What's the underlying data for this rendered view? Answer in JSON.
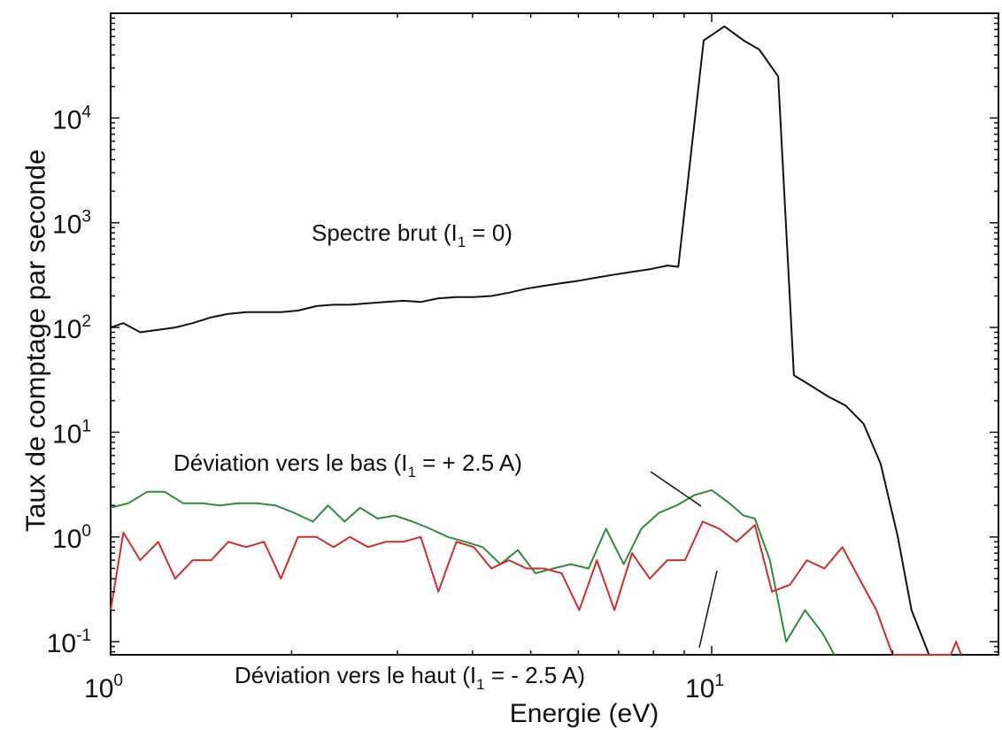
{
  "chart_data": {
    "type": "line",
    "xlabel": "Energie (eV)",
    "ylabel": "Taux de comptage par seconde",
    "x_scale": "log",
    "y_scale": "log",
    "xlim": [
      1,
      30
    ],
    "ylim": [
      0.075,
      100000
    ],
    "x_ticks": [
      {
        "base": "10",
        "exp": "0",
        "value": 1
      },
      {
        "base": "10",
        "exp": "1",
        "value": 10
      }
    ],
    "y_ticks": [
      {
        "base": "10",
        "exp": "-1",
        "value": 0.1
      },
      {
        "base": "10",
        "exp": "0",
        "value": 1
      },
      {
        "base": "10",
        "exp": "1",
        "value": 10
      },
      {
        "base": "10",
        "exp": "2",
        "value": 100
      },
      {
        "base": "10",
        "exp": "3",
        "value": 1000
      },
      {
        "base": "10",
        "exp": "4",
        "value": 10000
      }
    ],
    "grid": false,
    "legend": "none",
    "series": [
      {
        "color": "#111111",
        "x": [
          1.0,
          1.05,
          1.12,
          1.2,
          1.28,
          1.37,
          1.47,
          1.57,
          1.68,
          1.8,
          1.92,
          2.05,
          2.2,
          2.35,
          2.5,
          2.68,
          2.87,
          3.07,
          3.28,
          3.51,
          3.76,
          4.02,
          4.3,
          4.6,
          4.92,
          5.26,
          5.63,
          6.02,
          6.44,
          6.89,
          7.37,
          7.89,
          8.44,
          8.8,
          9.7,
          10.5,
          11.3,
          12.0,
          12.9,
          13.7,
          14.6,
          15.6,
          16.7,
          17.9,
          19.1,
          20.4,
          21.5,
          23.0
        ],
        "y": [
          100,
          110,
          90,
          95,
          100,
          110,
          125,
          135,
          140,
          140,
          140,
          145,
          160,
          165,
          165,
          170,
          175,
          180,
          175,
          190,
          195,
          195,
          200,
          215,
          235,
          250,
          265,
          280,
          300,
          320,
          340,
          360,
          390,
          380,
          55000,
          75000,
          55000,
          45000,
          25000,
          35,
          28,
          22,
          18,
          12,
          5,
          1,
          0.2,
          0.075
        ]
      },
      {
        "color": "#2e8b3a",
        "x": [
          1.0,
          1.07,
          1.15,
          1.23,
          1.32,
          1.42,
          1.52,
          1.63,
          1.75,
          1.88,
          2.02,
          2.17,
          2.3,
          2.45,
          2.6,
          2.78,
          2.97,
          3.18,
          3.4,
          3.64,
          3.89,
          4.16,
          4.45,
          4.76,
          5.09,
          5.45,
          5.83,
          6.24,
          6.67,
          7.14,
          7.64,
          8.17,
          8.74,
          9.35,
          10.0,
          10.7,
          11.3,
          11.8,
          12.5,
          13.3,
          14.3,
          15.3,
          16.0
        ],
        "y": [
          1.9,
          2.1,
          2.7,
          2.7,
          2.1,
          2.1,
          2.0,
          2.1,
          2.1,
          2.0,
          1.7,
          1.4,
          2.0,
          1.4,
          1.9,
          1.5,
          1.6,
          1.4,
          1.2,
          1.0,
          0.9,
          0.8,
          0.55,
          0.75,
          0.45,
          0.5,
          0.55,
          0.5,
          1.2,
          0.55,
          1.2,
          1.7,
          2.0,
          2.5,
          2.8,
          2.1,
          1.6,
          1.5,
          0.6,
          0.1,
          0.2,
          0.12,
          0.075
        ]
      },
      {
        "color": "#d42b2b",
        "x": [
          1.0,
          1.05,
          1.12,
          1.2,
          1.28,
          1.37,
          1.47,
          1.57,
          1.68,
          1.8,
          1.92,
          2.05,
          2.2,
          2.35,
          2.5,
          2.68,
          2.87,
          3.07,
          3.28,
          3.51,
          3.76,
          4.02,
          4.3,
          4.6,
          4.92,
          5.26,
          5.63,
          6.02,
          6.44,
          6.89,
          7.37,
          7.89,
          8.44,
          9.03,
          9.66,
          10.3,
          11.0,
          11.8,
          12.6,
          13.5,
          14.4,
          15.4,
          16.5,
          17.6,
          18.8,
          20.0,
          21.0,
          25.0,
          25.5,
          26.0
        ],
        "y": [
          0.2,
          1.1,
          0.6,
          0.9,
          0.4,
          0.6,
          0.6,
          0.9,
          0.8,
          0.9,
          0.4,
          1.0,
          1.0,
          0.8,
          1.0,
          0.8,
          0.9,
          0.9,
          1.0,
          0.3,
          0.9,
          0.8,
          0.5,
          0.6,
          0.5,
          0.5,
          0.45,
          0.2,
          0.6,
          0.2,
          0.7,
          0.4,
          0.6,
          0.6,
          1.4,
          1.2,
          0.9,
          1.3,
          0.3,
          0.35,
          0.6,
          0.5,
          0.8,
          0.4,
          0.2,
          0.075,
          0.075,
          0.075,
          0.1,
          0.075
        ]
      }
    ],
    "annotations": [
      {
        "text": "Spectre brut (I",
        "sub": "1",
        "rest": " = 0)",
        "series": 0
      },
      {
        "text": "Déviation vers le bas (I",
        "sub": "1",
        "rest": " = + 2.5 A)",
        "series": 1
      },
      {
        "text": "Déviation vers le haut (I",
        "sub": "1",
        "rest": " = - 2.5 A)",
        "series": 2
      }
    ]
  }
}
